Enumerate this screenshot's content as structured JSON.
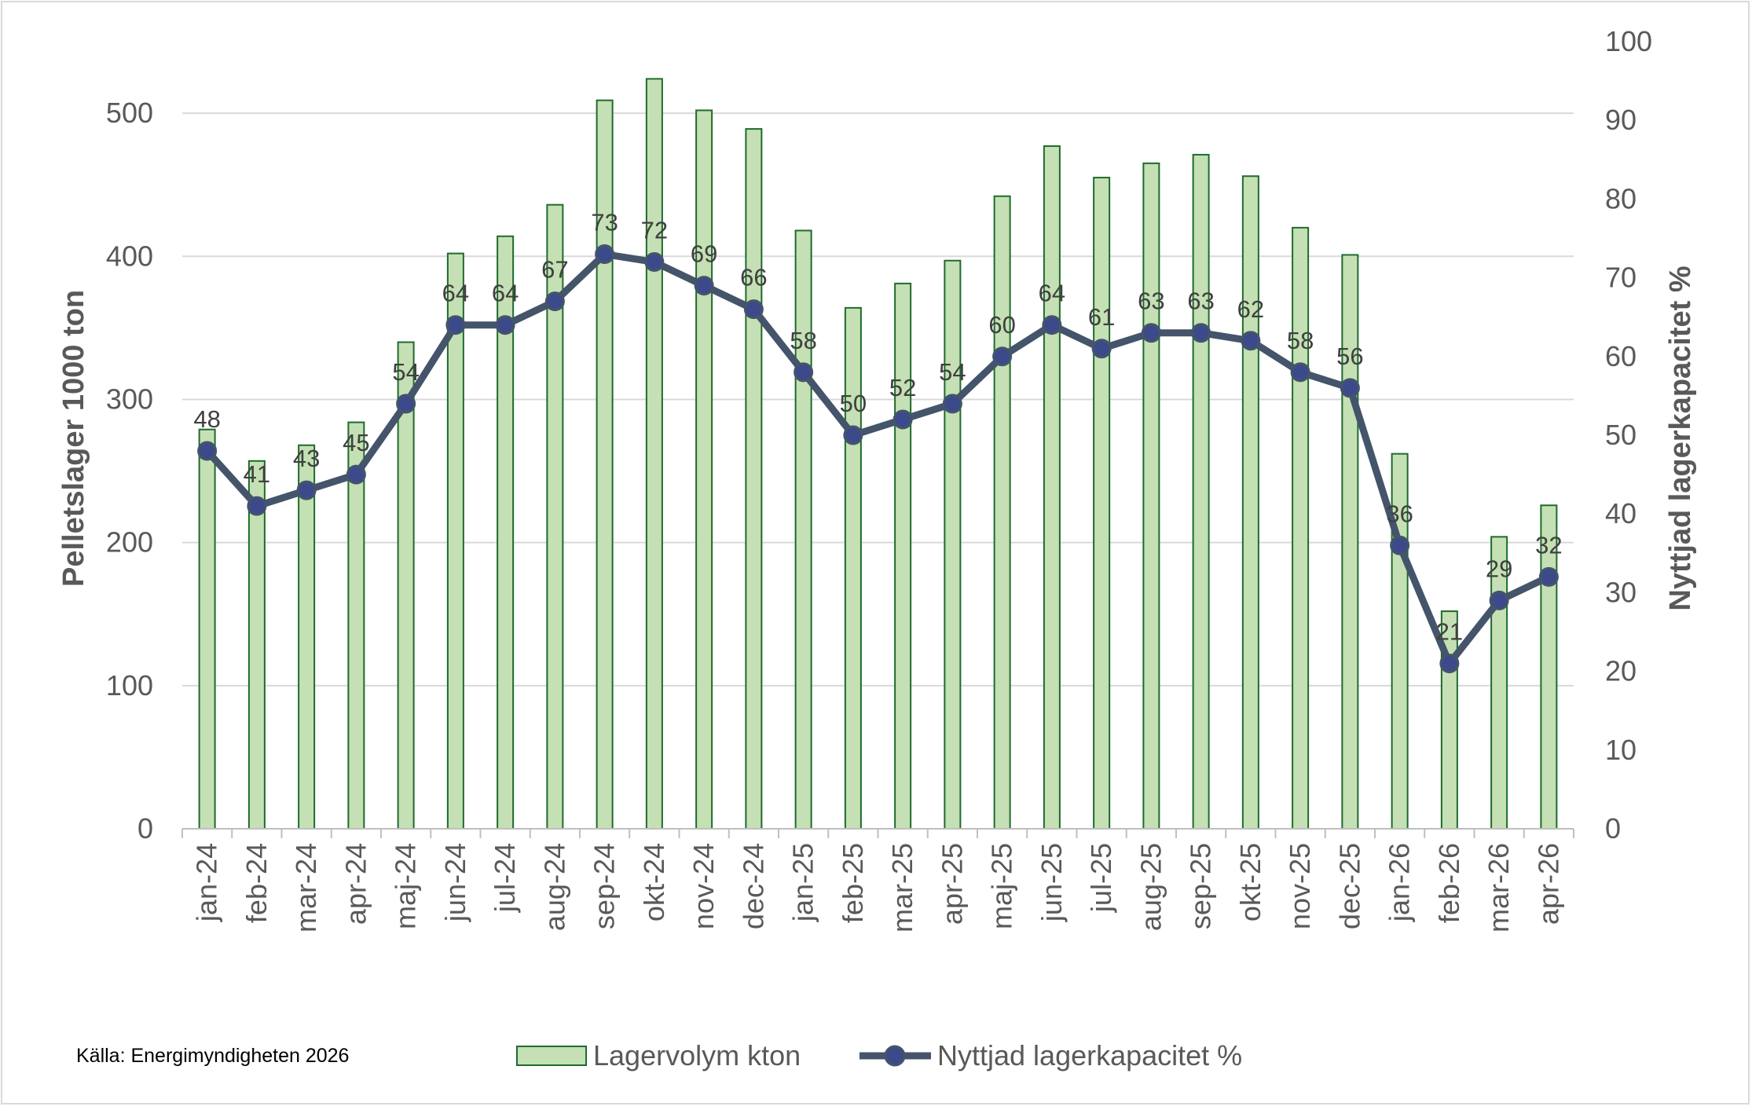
{
  "chart_data": {
    "type": "bar",
    "categories": [
      "jan-24",
      "feb-24",
      "mar-24",
      "apr-24",
      "maj-24",
      "jun-24",
      "jul-24",
      "aug-24",
      "sep-24",
      "okt-24",
      "nov-24",
      "dec-24",
      "jan-25",
      "feb-25",
      "mar-25",
      "apr-25",
      "maj-25",
      "jun-25",
      "jul-25",
      "aug-25",
      "sep-25",
      "okt-25",
      "nov-25",
      "dec-25",
      "jan-26",
      "feb-26",
      "mar-26",
      "apr-26"
    ],
    "series": [
      {
        "name": "Lagervolym kton",
        "type": "bar",
        "axis": "left",
        "color": "#c5e0b4",
        "edge_color": "#1e6b2e",
        "values": [
          279,
          257,
          268,
          284,
          340,
          402,
          414,
          436,
          509,
          524,
          502,
          489,
          418,
          364,
          381,
          397,
          442,
          477,
          455,
          465,
          471,
          456,
          420,
          401,
          262,
          152,
          204,
          226
        ]
      },
      {
        "name": "Nyttjad lagerkapacitet %",
        "type": "line",
        "axis": "right",
        "color": "#44546a",
        "values": [
          48,
          41,
          43,
          45,
          54,
          64,
          64,
          67,
          73,
          72,
          69,
          66,
          58,
          50,
          52,
          54,
          60,
          64,
          61,
          63,
          63,
          62,
          58,
          56,
          36,
          21,
          29,
          32
        ],
        "data_labels": [
          "48",
          "41",
          "43",
          "45",
          "54",
          "64",
          "64",
          "67",
          "73",
          "72",
          "69",
          "66",
          "58",
          "50",
          "52",
          "54",
          "60",
          "64",
          "61",
          "63",
          "63",
          "62",
          "58",
          "56",
          "36",
          "21",
          "29",
          "32"
        ]
      }
    ],
    "y_left": {
      "label": "Pelletslager 1000 ton",
      "ylim": [
        0,
        550
      ],
      "ticks": [
        0,
        100,
        200,
        300,
        400,
        500
      ],
      "tick_labels": [
        "0",
        "100",
        "200",
        "300",
        "400",
        "500"
      ]
    },
    "y_right": {
      "label": "Nyttjad lagerkapacitet %",
      "ylim": [
        0,
        100
      ],
      "ticks": [
        0,
        10,
        20,
        30,
        40,
        50,
        60,
        70,
        80,
        90,
        100
      ],
      "tick_labels": [
        "0",
        "10",
        "20",
        "30",
        "40",
        "50",
        "60",
        "70",
        "80",
        "90",
        "100"
      ]
    },
    "grid": true,
    "gridline_color": "#d9d9d9",
    "legend": {
      "placement": "bottom",
      "entries": [
        "Lagervolym kton",
        "Nyttjad lagerkapacitet %"
      ]
    }
  },
  "source_note": "Källa: Energimyndigheten 2026"
}
